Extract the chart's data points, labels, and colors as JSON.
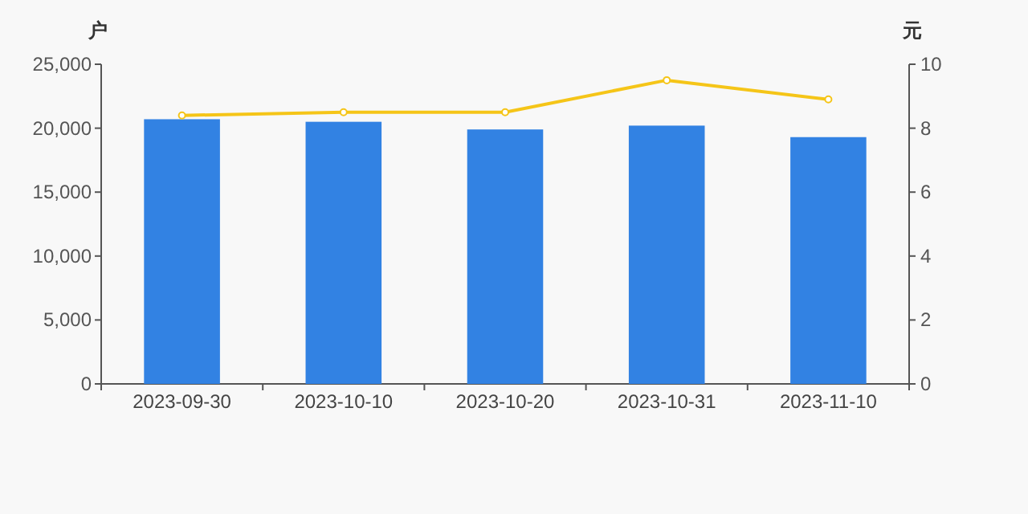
{
  "chart_data": {
    "type": "bar",
    "ylabel": "户",
    "y2label": "元",
    "categories": [
      "2023-09-30",
      "2023-10-10",
      "2023-10-20",
      "2023-10-31",
      "2023-11-10"
    ],
    "series": [
      {
        "color": "#3282e3",
        "values": [
          20700,
          20500,
          19900,
          20200,
          19300
        ]
      },
      {
        "type": "line",
        "axis": "y2",
        "color": "#f5c518",
        "marker": "circle",
        "values": [
          8.4,
          8.5,
          8.5,
          9.5,
          8.9
        ]
      }
    ],
    "ylim": [
      0,
      25000
    ],
    "yticks": [
      {
        "value": 0,
        "label": "0"
      },
      {
        "value": 5000,
        "label": "5,000"
      },
      {
        "value": 10000,
        "label": "10,000"
      },
      {
        "value": 15000,
        "label": "15,000"
      },
      {
        "value": 20000,
        "label": "20,000"
      },
      {
        "value": 25000,
        "label": "25,000"
      }
    ],
    "y2lim": [
      0,
      10
    ],
    "y2ticks": [
      0,
      2,
      4,
      6,
      8,
      10
    ],
    "grid": false
  }
}
